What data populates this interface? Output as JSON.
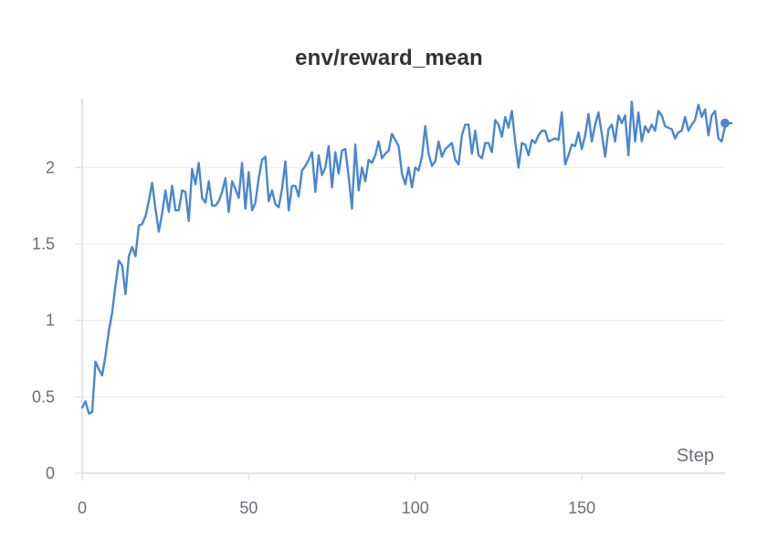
{
  "chart_data": {
    "type": "line",
    "title": "env/reward_mean",
    "xlabel": "Step",
    "ylabel": "",
    "xlim": [
      0,
      193
    ],
    "ylim": [
      0,
      2.45
    ],
    "xticks": [
      0,
      50,
      100,
      150
    ],
    "yticks": [
      0,
      0.5,
      1,
      1.5,
      2
    ],
    "ytick_labels": [
      "0",
      "0.5",
      "1",
      "1.5",
      "2"
    ],
    "grid": true,
    "line_color": "#4a86d1",
    "series": [
      {
        "values": [
          0.43,
          0.47,
          0.39,
          0.4,
          0.73,
          0.68,
          0.64,
          0.77,
          0.93,
          1.05,
          1.23,
          1.39,
          1.36,
          1.17,
          1.42,
          1.48,
          1.42,
          1.62,
          1.63,
          1.68,
          1.78,
          1.9,
          1.73,
          1.58,
          1.7,
          1.85,
          1.71,
          1.88,
          1.72,
          1.72,
          1.85,
          1.84,
          1.65,
          1.99,
          1.89,
          2.03,
          1.8,
          1.77,
          1.91,
          1.75,
          1.75,
          1.78,
          1.84,
          1.93,
          1.71,
          1.91,
          1.86,
          1.8,
          2.03,
          1.73,
          1.97,
          1.72,
          1.77,
          1.93,
          2.05,
          2.07,
          1.78,
          1.85,
          1.76,
          1.74,
          1.86,
          2.04,
          1.72,
          1.88,
          1.88,
          1.81,
          1.98,
          2.01,
          2.05,
          2.1,
          1.84,
          2.08,
          1.95,
          2.0,
          2.14,
          1.87,
          2.1,
          1.96,
          2.11,
          2.12,
          1.94,
          1.73,
          2.15,
          1.85,
          2.0,
          1.91,
          2.05,
          2.03,
          2.08,
          2.17,
          2.06,
          2.09,
          2.11,
          2.22,
          2.18,
          2.14,
          1.96,
          1.89,
          2.0,
          1.87,
          2.0,
          1.98,
          2.07,
          2.27,
          2.09,
          2.01,
          2.04,
          2.17,
          2.07,
          2.12,
          2.14,
          2.16,
          2.05,
          2.02,
          2.21,
          2.28,
          2.28,
          2.09,
          2.24,
          2.08,
          2.06,
          2.16,
          2.16,
          2.1,
          2.31,
          2.28,
          2.2,
          2.33,
          2.26,
          2.37,
          2.17,
          2.0,
          2.16,
          2.15,
          2.08,
          2.18,
          2.16,
          2.21,
          2.24,
          2.24,
          2.17,
          2.18,
          2.19,
          2.18,
          2.36,
          2.02,
          2.08,
          2.15,
          2.14,
          2.23,
          2.12,
          2.21,
          2.35,
          2.17,
          2.28,
          2.36,
          2.22,
          2.07,
          2.25,
          2.28,
          2.17,
          2.34,
          2.29,
          2.34,
          2.08,
          2.43,
          2.17,
          2.36,
          2.17,
          2.27,
          2.23,
          2.28,
          2.24,
          2.37,
          2.34,
          2.27,
          2.26,
          2.25,
          2.19,
          2.23,
          2.24,
          2.33,
          2.24,
          2.28,
          2.31,
          2.41,
          2.33,
          2.38,
          2.21,
          2.34,
          2.37,
          2.19,
          2.17,
          2.27,
          2.29,
          2.29
        ]
      }
    ],
    "end_marker": {
      "x": 193,
      "y": 2.29
    }
  }
}
